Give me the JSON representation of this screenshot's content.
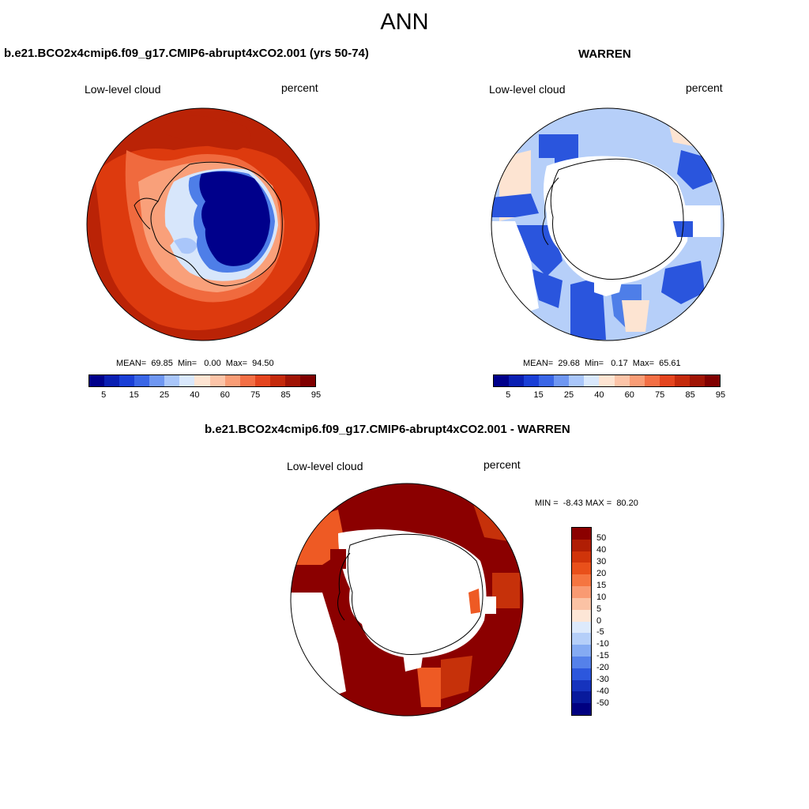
{
  "title": "ANN",
  "panels": {
    "top_left": {
      "title": "b.e21.BCO2x4cmip6.f09_g17.CMIP6-abrupt4xCO2.001 (yrs 50-74)",
      "variable": "Low-level cloud",
      "units": "percent",
      "stats": "MEAN=  69.85  Min=   0.00  Max=  94.50"
    },
    "top_right": {
      "title": "WARREN",
      "variable": "Low-level cloud",
      "units": "percent",
      "stats": "MEAN=  29.68  Min=   0.17  Max=  65.61"
    },
    "bottom": {
      "title": "b.e21.BCO2x4cmip6.f09_g17.CMIP6-abrupt4xCO2.001 - WARREN",
      "variable": "Low-level cloud",
      "units": "percent",
      "stats": "MIN =  -8.43 MAX =  80.20"
    }
  },
  "colorbar_abs": {
    "tick_labels": [
      "5",
      "15",
      "25",
      "40",
      "60",
      "75",
      "85",
      "95"
    ],
    "colors": [
      "#00008b",
      "#0a1fb2",
      "#1a3fd6",
      "#3a66e6",
      "#6f97f2",
      "#a9c6fa",
      "#d9e8fc",
      "#fde4d2",
      "#fcc4a8",
      "#f99d76",
      "#f36f45",
      "#e4451f",
      "#c42a0c",
      "#a01405",
      "#800000"
    ]
  },
  "colorbar_diff": {
    "tick_labels": [
      "50",
      "40",
      "30",
      "20",
      "15",
      "10",
      "5",
      "0",
      "-5",
      "-10",
      "-15",
      "-20",
      "-30",
      "-40",
      "-50"
    ],
    "colors": [
      "#8b0000",
      "#b01e04",
      "#d0340a",
      "#e9501a",
      "#f57540",
      "#f99a72",
      "#fbc2a4",
      "#fde6d6",
      "#ddeafc",
      "#b5cff9",
      "#85abf3",
      "#5581ea",
      "#2c57dd",
      "#1633bd",
      "#081a9c",
      "#000080"
    ]
  },
  "map_colors": {
    "ocean_high": "#ba2306",
    "ocean_mid": "#dd3a0e",
    "ocean_edge": "#f06a3e",
    "pale_orange": "#f9a07a",
    "ice_pale": "#d7e6fb",
    "ice_light": "#a9c6fa",
    "ice_mid": "#4e7ee8",
    "ice_deep": "#00008b",
    "obs_light": "#b6cff9",
    "obs_mid": "#2a55dd",
    "obs_peach": "#fde4d2",
    "diff_dark": "#8b0000",
    "diff_mid": "#c6310a",
    "diff_orange": "#ee5a24",
    "outline": "#000000"
  }
}
